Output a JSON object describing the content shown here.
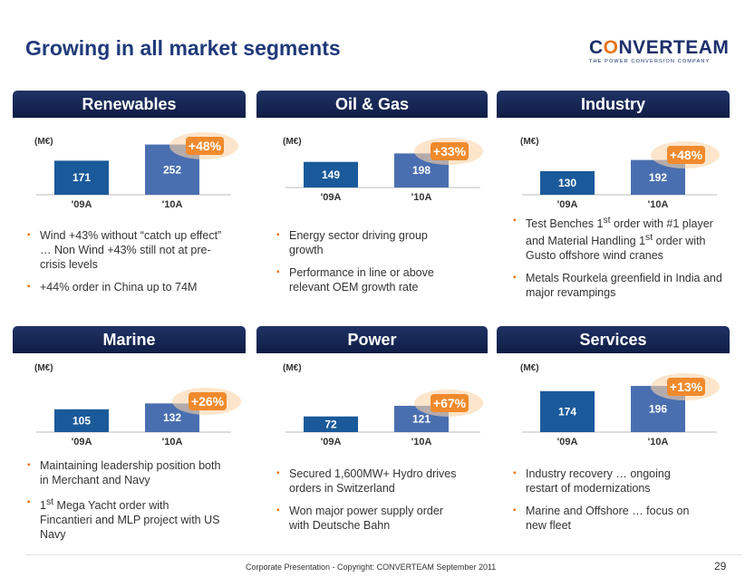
{
  "slide": {
    "title": "Growing in all market segments",
    "logo": {
      "brand": "CONVERTEAM",
      "tagline": "THE POWER CONVERSION COMPANY"
    },
    "footer": "Corporate Presentation - Copyright: CONVERTEAM September 2011",
    "page_number": "29"
  },
  "colors": {
    "bar_old": "#1a5a9a",
    "bar_new": "#4a6fb0",
    "growth_badge": "#f08a2c",
    "header": "#1a2a5a",
    "title": "#1f3a7a"
  },
  "segments": [
    {
      "name": "Renewables",
      "unit": "(M€)",
      "growth": "+48%",
      "bullets": [
        "Wind +43% without “catch up effect” … Non Wind +43% still not at pre-crisis levels",
        "+44% order in China up to 74M"
      ]
    },
    {
      "name": "Oil & Gas",
      "unit": "(M€)",
      "growth": "+33%",
      "bullets": [
        "Energy sector driving group growth",
        "Performance in line or above relevant OEM growth rate"
      ]
    },
    {
      "name": "Industry",
      "unit": "(M€)",
      "growth": "+48%",
      "bullets": [
        "Test Benches 1st order with #1 player and Material Handling 1st order with Gusto offshore wind cranes",
        "Metals Rourkela greenfield in India and major revampings"
      ]
    },
    {
      "name": "Marine",
      "unit": "(M€)",
      "growth": "+26%",
      "bullets": [
        "Maintaining leadership position both in Merchant and Navy",
        "1st Mega Yacht order with Fincantieri and MLP project with US Navy"
      ]
    },
    {
      "name": "Power",
      "unit": "(M€)",
      "growth": "+67%",
      "bullets": [
        "Secured 1,600MW+ Hydro drives orders in Switzerland",
        "Won major power supply order with Deutsche Bahn"
      ]
    },
    {
      "name": "Services",
      "unit": "(M€)",
      "growth": "+13%",
      "bullets": [
        "Industry recovery … ongoing restart of modernizations",
        "Marine and Offshore … focus on new fleet"
      ]
    }
  ],
  "chart_data": [
    {
      "type": "bar",
      "title": "Renewables",
      "categories": [
        "'09A",
        "'10A"
      ],
      "values": [
        171,
        252
      ],
      "ylabel": "(M€)",
      "annotation": "+48%"
    },
    {
      "type": "bar",
      "title": "Oil & Gas",
      "categories": [
        "'09A",
        "'10A"
      ],
      "values": [
        149,
        198
      ],
      "ylabel": "(M€)",
      "annotation": "+33%"
    },
    {
      "type": "bar",
      "title": "Industry",
      "categories": [
        "'09A",
        "'10A"
      ],
      "values": [
        130,
        192
      ],
      "ylabel": "(M€)",
      "annotation": "+48%"
    },
    {
      "type": "bar",
      "title": "Marine",
      "categories": [
        "'09A",
        "'10A"
      ],
      "values": [
        105,
        132
      ],
      "ylabel": "(M€)",
      "annotation": "+26%"
    },
    {
      "type": "bar",
      "title": "Power",
      "categories": [
        "'09A",
        "'10A"
      ],
      "values": [
        72,
        121
      ],
      "ylabel": "(M€)",
      "annotation": "+67%"
    },
    {
      "type": "bar",
      "title": "Services",
      "categories": [
        "'09A",
        "'10A"
      ],
      "values": [
        174,
        196
      ],
      "ylabel": "(M€)",
      "annotation": "+13%"
    }
  ]
}
